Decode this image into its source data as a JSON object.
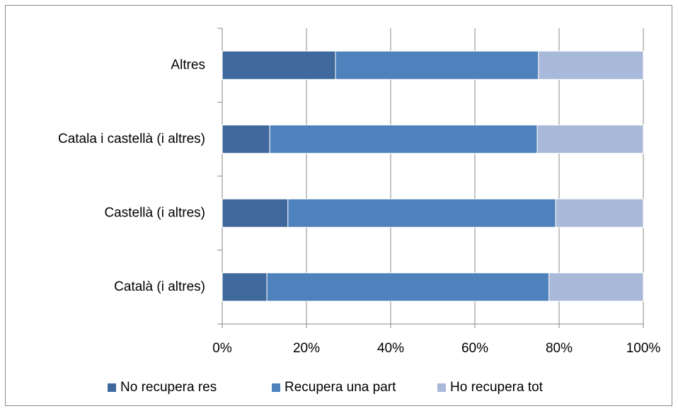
{
  "chart_data": {
    "type": "stacked_barh",
    "categories": [
      "Altres",
      "Catala i castellà (i altres)",
      "Castellà (i altres)",
      "Català (i altres)"
    ],
    "series": [
      {
        "name": "No recupera res",
        "color": "#3f689c",
        "values": [
          26.9,
          11.3,
          15.6,
          10.6
        ]
      },
      {
        "name": "Recupera una part",
        "color": "#4f81bd",
        "values": [
          48.2,
          63.5,
          63.6,
          67.0
        ]
      },
      {
        "name": "Ho recupera tot",
        "color": "#a9b9d9",
        "values": [
          24.9,
          25.2,
          20.8,
          22.4
        ]
      }
    ],
    "xlim": [
      0,
      100
    ],
    "xticks": [
      {
        "value": 0,
        "label": "0%"
      },
      {
        "value": 20,
        "label": "20%"
      },
      {
        "value": 40,
        "label": "40%"
      },
      {
        "value": 60,
        "label": "60%"
      },
      {
        "value": 80,
        "label": "80%"
      },
      {
        "value": 100,
        "label": "100%"
      }
    ],
    "grid": true,
    "legend": "bottom"
  }
}
